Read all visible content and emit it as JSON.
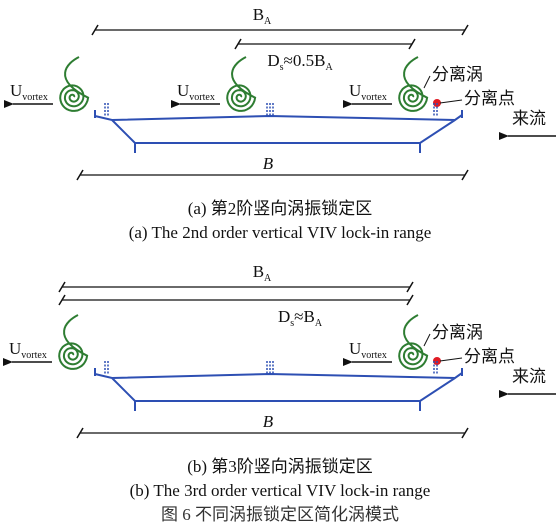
{
  "panels": [
    {
      "ba_label": [
        {
          "t": "B"
        },
        {
          "t": "A",
          "sub": true
        }
      ],
      "ds_label": [
        {
          "t": "D"
        },
        {
          "t": "s",
          "sub": true
        },
        {
          "t": "≈0.5"
        },
        {
          "t": "B"
        },
        {
          "t": "A",
          "sub": true
        }
      ],
      "vortices": [
        {
          "label": [
            {
              "t": "U"
            },
            {
              "t": "vortex",
              "sub": true
            }
          ]
        },
        {
          "label": [
            {
              "t": "U"
            },
            {
              "t": "vortex",
              "sub": true
            }
          ]
        },
        {
          "label": [
            {
              "t": "U"
            },
            {
              "t": "vortex",
              "sub": true
            }
          ]
        }
      ],
      "vortex_label": "分离涡",
      "point_label": "分离点",
      "flow_label": "来流",
      "b_label": "B",
      "caption_cn": "(a)  第2阶竖向涡振锁定区",
      "caption_en": "(a)  The 2nd order vertical VIV lock-in range"
    },
    {
      "ba_label": [
        {
          "t": "B"
        },
        {
          "t": "A",
          "sub": true
        }
      ],
      "ds_label": [
        {
          "t": "D"
        },
        {
          "t": "s",
          "sub": true
        },
        {
          "t": "≈"
        },
        {
          "t": "B"
        },
        {
          "t": "A",
          "sub": true
        }
      ],
      "vortices": [
        {
          "label": [
            {
              "t": "U"
            },
            {
              "t": "vortex",
              "sub": true
            }
          ]
        },
        {
          "label": [
            {
              "t": "U"
            },
            {
              "t": "vortex",
              "sub": true
            }
          ]
        }
      ],
      "vortex_label": "分离涡",
      "point_label": "分离点",
      "flow_label": "来流",
      "b_label": "B",
      "caption_cn": "(b)  第3阶竖向涡振锁定区",
      "caption_en": "(b)  The 3rd order vertical VIV lock-in range"
    }
  ],
  "figure_caption": "图 6    不同涡振锁定区简化涡模式"
}
